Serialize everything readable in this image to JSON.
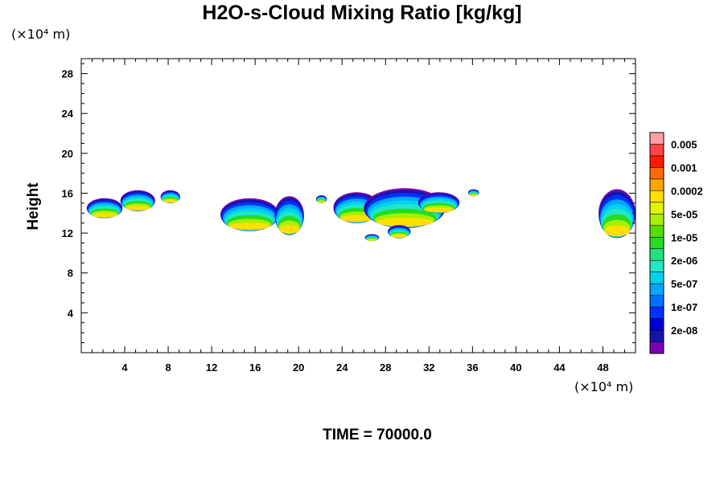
{
  "chart_data": {
    "type": "heatmap",
    "title": "H2O-s-Cloud Mixing Ratio [kg/kg]",
    "xlabel": "",
    "ylabel": "Height",
    "x_unit": "(×10⁴ m)",
    "y_unit": "(×10⁴ m)",
    "xlim": [
      0,
      51
    ],
    "ylim": [
      0,
      29.5
    ],
    "x_ticks": [
      4,
      8,
      12,
      16,
      20,
      24,
      28,
      32,
      36,
      40,
      44,
      48
    ],
    "y_ticks": [
      4,
      8,
      12,
      16,
      20,
      24,
      28
    ],
    "time_label": "TIME = 70000.0",
    "colorbar": {
      "labels": [
        "0.005",
        "0.001",
        "0.0002",
        "5e-05",
        "1e-05",
        "2e-06",
        "5e-07",
        "1e-07",
        "2e-08"
      ],
      "colors": [
        "#ff9fa8",
        "#ff4444",
        "#ff1a00",
        "#ff6a00",
        "#ffa500",
        "#ffe000",
        "#e4f200",
        "#aaee00",
        "#55e000",
        "#22dd22",
        "#22e080",
        "#22e6c8",
        "#00d2f0",
        "#00a8ff",
        "#0070ff",
        "#0030ff",
        "#0000d8",
        "#1414a8",
        "#7a00b4"
      ]
    },
    "clouds": [
      {
        "x0": 0.5,
        "x1": 3.8,
        "ytop": 15.5,
        "ybot": 13.5
      },
      {
        "x0": 3.6,
        "x1": 6.8,
        "ytop": 16.3,
        "ybot": 14.2
      },
      {
        "x0": 7.3,
        "x1": 9.1,
        "ytop": 16.3,
        "ybot": 15.0
      },
      {
        "x0": 12.8,
        "x1": 18.2,
        "ytop": 15.5,
        "ybot": 12.2
      },
      {
        "x0": 17.8,
        "x1": 20.5,
        "ytop": 15.7,
        "ybot": 11.8
      },
      {
        "x0": 21.6,
        "x1": 22.6,
        "ytop": 15.8,
        "ybot": 15.0
      },
      {
        "x0": 23.2,
        "x1": 27.5,
        "ytop": 16.1,
        "ybot": 13.0
      },
      {
        "x0": 26.0,
        "x1": 33.5,
        "ytop": 16.5,
        "ybot": 12.5
      },
      {
        "x0": 31.0,
        "x1": 34.8,
        "ytop": 16.1,
        "ybot": 14.0
      },
      {
        "x0": 26.1,
        "x1": 27.4,
        "ytop": 11.9,
        "ybot": 11.2
      },
      {
        "x0": 28.2,
        "x1": 30.3,
        "ytop": 12.8,
        "ybot": 11.5
      },
      {
        "x0": 35.6,
        "x1": 36.6,
        "ytop": 16.4,
        "ybot": 15.7
      },
      {
        "x0": 47.6,
        "x1": 51.0,
        "ytop": 16.4,
        "ybot": 11.5
      }
    ]
  }
}
